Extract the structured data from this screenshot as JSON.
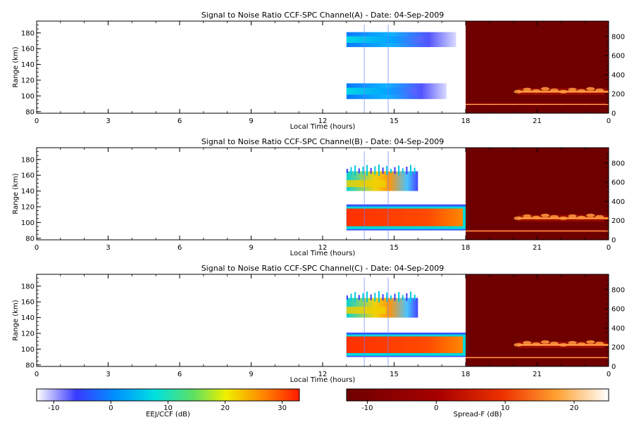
{
  "chart_data": {
    "type": "heatmap",
    "panels": [
      {
        "title": "Signal to Noise Ratio CCF-SPC Channel(A) - Date: 04-Sep-2009",
        "xlabel": "Local Time (hours)",
        "ylabel": "Range (km)",
        "x_ticks": [
          "0",
          "3",
          "6",
          "9",
          "12",
          "15",
          "18",
          "21",
          "0"
        ],
        "y_left_ticks": [
          "80",
          "100",
          "120",
          "140",
          "160",
          "180"
        ],
        "y_right_ticks": [
          "0",
          "200",
          "400",
          "600",
          "800"
        ],
        "ylim_left": [
          78,
          195
        ],
        "ylim_right": [
          0,
          960
        ],
        "day_echoes": [
          {
            "t_start": 13.0,
            "t_end": 17.6,
            "range_low": 162,
            "range_high": 181,
            "level": 0.25
          },
          {
            "t_start": 13.0,
            "t_end": 17.2,
            "range_low": 96,
            "range_high": 116,
            "level": 0.35
          }
        ],
        "night_echoes": [
          {
            "t_start": 20.2,
            "t_end": 24.0,
            "height_low": 190,
            "height_high": 260,
            "level": 0.7
          },
          {
            "t_start": 18.0,
            "t_end": 24.0,
            "height_low": 80,
            "height_high": 105,
            "level": 0.75
          }
        ]
      },
      {
        "title": "Signal to Noise Ratio CCF-SPC Channel(B) - Date: 04-Sep-2009",
        "xlabel": "Local Time (hours)",
        "ylabel": "Range (km)",
        "x_ticks": [
          "0",
          "3",
          "6",
          "9",
          "12",
          "15",
          "18",
          "21",
          "0"
        ],
        "y_left_ticks": [
          "80",
          "100",
          "120",
          "140",
          "160",
          "180"
        ],
        "y_right_ticks": [
          "0",
          "200",
          "400",
          "600",
          "800"
        ],
        "ylim_left": [
          78,
          195
        ],
        "ylim_right": [
          0,
          960
        ],
        "day_echoes": [
          {
            "t_start": 13.0,
            "t_end": 16.0,
            "range_low": 140,
            "range_high": 165,
            "level": 0.55
          },
          {
            "t_start": 13.0,
            "t_end": 18.0,
            "range_low": 90,
            "range_high": 123,
            "level": 0.9
          }
        ],
        "night_echoes": [
          {
            "t_start": 20.2,
            "t_end": 24.0,
            "height_low": 190,
            "height_high": 260,
            "level": 0.7
          },
          {
            "t_start": 18.0,
            "t_end": 24.0,
            "height_low": 80,
            "height_high": 105,
            "level": 0.75
          }
        ]
      },
      {
        "title": "Signal to Noise Ratio CCF-SPC Channel(C) - Date: 04-Sep-2009",
        "xlabel": "Local Time (hours)",
        "ylabel": "Range (km)",
        "x_ticks": [
          "0",
          "3",
          "6",
          "9",
          "12",
          "15",
          "18",
          "21",
          "0"
        ],
        "y_left_ticks": [
          "80",
          "100",
          "120",
          "140",
          "160",
          "180"
        ],
        "y_right_ticks": [
          "0",
          "200",
          "400",
          "600",
          "800"
        ],
        "ylim_left": [
          78,
          195
        ],
        "ylim_right": [
          0,
          960
        ],
        "day_echoes": [
          {
            "t_start": 13.0,
            "t_end": 16.0,
            "range_low": 140,
            "range_high": 165,
            "level": 0.6
          },
          {
            "t_start": 13.0,
            "t_end": 18.0,
            "range_low": 90,
            "range_high": 121,
            "level": 0.85
          }
        ],
        "night_echoes": [
          {
            "t_start": 20.2,
            "t_end": 24.0,
            "height_low": 190,
            "height_high": 260,
            "level": 0.75
          },
          {
            "t_start": 18.0,
            "t_end": 24.0,
            "height_low": 80,
            "height_high": 105,
            "level": 0.75
          }
        ]
      }
    ],
    "colorbars": [
      {
        "label": "EEJ/CCF (dB)",
        "range": [
          -13,
          33
        ],
        "ticks": [
          "-10",
          "0",
          "10",
          "20",
          "30"
        ],
        "tick_values": [
          -10,
          0,
          10,
          20,
          30
        ],
        "colormap": "rainbow"
      },
      {
        "label": "Spread-F (dB)",
        "range": [
          -13,
          25
        ],
        "ticks": [
          "-10",
          "0",
          "10",
          "20"
        ],
        "tick_values": [
          -10,
          0,
          10,
          20
        ],
        "colormap": "heat"
      }
    ],
    "colors": {
      "night_background": "#6e0000",
      "axis": "#000000"
    }
  }
}
